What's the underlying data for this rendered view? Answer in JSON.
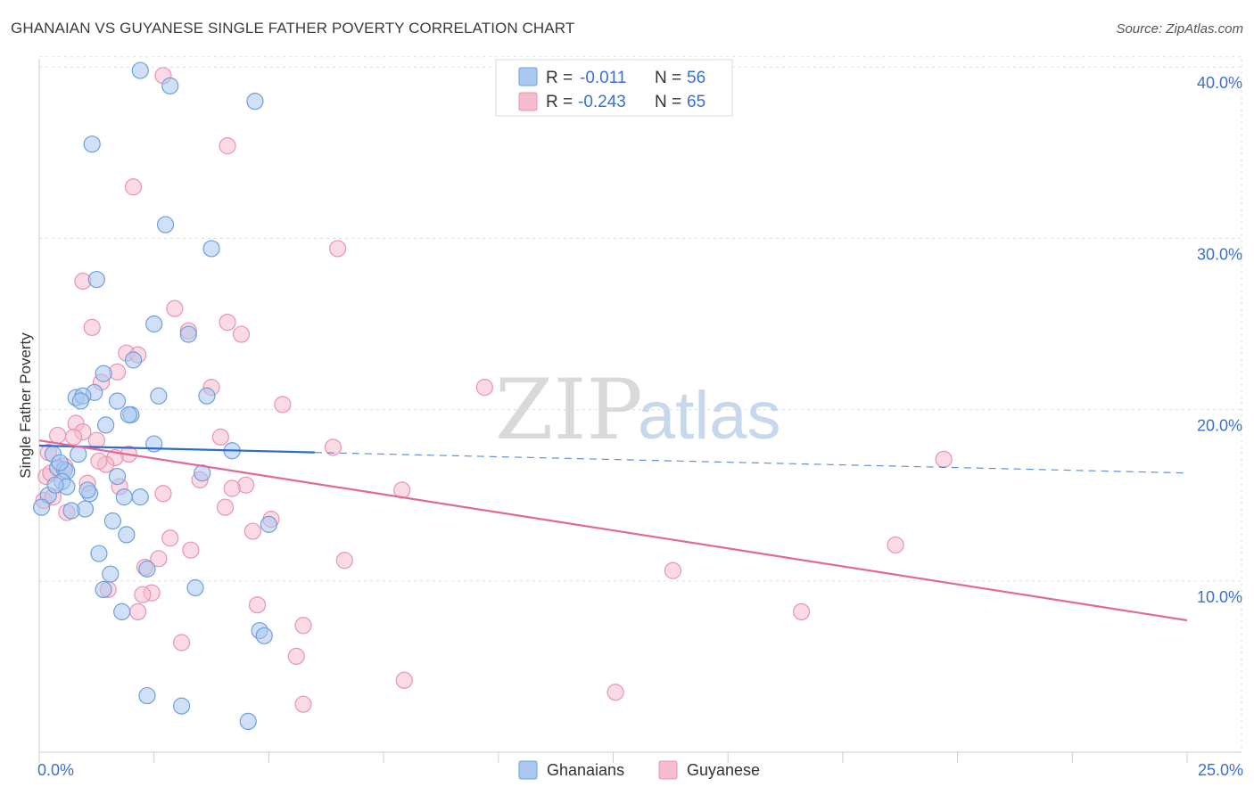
{
  "header": {
    "title": "GHANAIAN VS GUYANESE SINGLE FATHER POVERTY CORRELATION CHART",
    "source": "Source: ZipAtlas.com"
  },
  "watermark": {
    "zip": "ZIP",
    "atlas": "atlas"
  },
  "colors": {
    "blue_fill": "#aac8f0",
    "blue_stroke": "#6f9fdc",
    "blue_line": "#2a6ccc",
    "pink_fill": "#f5bccd",
    "pink_stroke": "#e994b0",
    "pink_line": "#e06a97",
    "tick_text": "#3b6fd0",
    "grid": "#dddddd"
  },
  "legend": {
    "rows": [
      {
        "r_label": "R =",
        "r_value": "-0.011",
        "n_label": "N =",
        "n_value": "56"
      },
      {
        "r_label": "R =",
        "r_value": "-0.243",
        "n_label": "N =",
        "n_value": "65"
      }
    ]
  },
  "bottom_legend": {
    "items": [
      "Ghanaians",
      "Guyanese"
    ]
  },
  "chart_data": {
    "type": "scatter",
    "title": "GHANAIAN VS GUYANESE SINGLE FATHER POVERTY CORRELATION CHART",
    "xlabel": "",
    "ylabel": "Single Father Poverty",
    "xlim": [
      0,
      25
    ],
    "ylim": [
      0,
      41
    ],
    "x_tick_labels": [
      "0.0%",
      "25.0%"
    ],
    "y_ticks": [
      10,
      20,
      30,
      40
    ],
    "y_tick_labels": [
      "10.0%",
      "20.0%",
      "30.0%",
      "40.0%"
    ],
    "grid": true,
    "series": [
      {
        "name": "Ghanaians",
        "r": -0.011,
        "n": 56,
        "trend": {
          "x": [
            0,
            6.0
          ],
          "y": [
            17.9,
            17.5
          ]
        },
        "trend_extension": {
          "x": [
            6.0,
            25
          ],
          "y": [
            17.5,
            16.3
          ]
        },
        "points": [
          {
            "x": 2.2,
            "y": 39.8
          },
          {
            "x": 2.85,
            "y": 38.9
          },
          {
            "x": 4.7,
            "y": 38.0
          },
          {
            "x": 1.15,
            "y": 35.5
          },
          {
            "x": 2.75,
            "y": 30.8
          },
          {
            "x": 3.75,
            "y": 29.4
          },
          {
            "x": 1.25,
            "y": 27.6
          },
          {
            "x": 2.5,
            "y": 25.0
          },
          {
            "x": 3.25,
            "y": 24.4
          },
          {
            "x": 2.05,
            "y": 22.9
          },
          {
            "x": 1.4,
            "y": 22.1
          },
          {
            "x": 1.2,
            "y": 21.0
          },
          {
            "x": 0.8,
            "y": 20.7
          },
          {
            "x": 0.95,
            "y": 20.8
          },
          {
            "x": 0.9,
            "y": 20.5
          },
          {
            "x": 1.7,
            "y": 20.5
          },
          {
            "x": 2.6,
            "y": 20.8
          },
          {
            "x": 3.65,
            "y": 20.8
          },
          {
            "x": 2.0,
            "y": 19.7
          },
          {
            "x": 1.95,
            "y": 19.7
          },
          {
            "x": 1.45,
            "y": 19.1
          },
          {
            "x": 2.5,
            "y": 18.0
          },
          {
            "x": 4.2,
            "y": 17.6
          },
          {
            "x": 0.3,
            "y": 17.4
          },
          {
            "x": 0.85,
            "y": 17.4
          },
          {
            "x": 0.4,
            "y": 16.6
          },
          {
            "x": 0.55,
            "y": 16.5
          },
          {
            "x": 0.6,
            "y": 16.4
          },
          {
            "x": 3.55,
            "y": 16.3
          },
          {
            "x": 1.7,
            "y": 16.1
          },
          {
            "x": 0.5,
            "y": 15.8
          },
          {
            "x": 0.6,
            "y": 15.5
          },
          {
            "x": 1.1,
            "y": 15.1
          },
          {
            "x": 0.2,
            "y": 15.0
          },
          {
            "x": 1.85,
            "y": 14.9
          },
          {
            "x": 2.2,
            "y": 14.9
          },
          {
            "x": 0.05,
            "y": 14.3
          },
          {
            "x": 1.0,
            "y": 14.2
          },
          {
            "x": 0.7,
            "y": 14.1
          },
          {
            "x": 1.6,
            "y": 13.5
          },
          {
            "x": 5.0,
            "y": 13.3
          },
          {
            "x": 1.9,
            "y": 12.7
          },
          {
            "x": 1.3,
            "y": 11.6
          },
          {
            "x": 1.55,
            "y": 10.4
          },
          {
            "x": 2.35,
            "y": 10.7
          },
          {
            "x": 3.4,
            "y": 9.6
          },
          {
            "x": 1.4,
            "y": 9.5
          },
          {
            "x": 1.8,
            "y": 8.2
          },
          {
            "x": 4.8,
            "y": 7.1
          },
          {
            "x": 4.9,
            "y": 6.8
          },
          {
            "x": 2.35,
            "y": 3.3
          },
          {
            "x": 3.1,
            "y": 2.7
          },
          {
            "x": 4.55,
            "y": 1.8
          },
          {
            "x": 0.35,
            "y": 15.6
          },
          {
            "x": 0.45,
            "y": 16.9
          },
          {
            "x": 1.05,
            "y": 15.3
          }
        ]
      },
      {
        "name": "Guyanese",
        "r": -0.243,
        "n": 65,
        "trend": {
          "x": [
            0,
            25
          ],
          "y": [
            18.2,
            7.7
          ]
        },
        "points": [
          {
            "x": 2.7,
            "y": 39.5
          },
          {
            "x": 4.1,
            "y": 35.4
          },
          {
            "x": 2.05,
            "y": 33.0
          },
          {
            "x": 6.5,
            "y": 29.4
          },
          {
            "x": 0.95,
            "y": 27.5
          },
          {
            "x": 2.95,
            "y": 25.9
          },
          {
            "x": 1.15,
            "y": 24.8
          },
          {
            "x": 4.1,
            "y": 25.1
          },
          {
            "x": 3.25,
            "y": 24.6
          },
          {
            "x": 4.4,
            "y": 24.4
          },
          {
            "x": 1.9,
            "y": 23.3
          },
          {
            "x": 2.15,
            "y": 23.2
          },
          {
            "x": 1.7,
            "y": 22.2
          },
          {
            "x": 1.35,
            "y": 21.6
          },
          {
            "x": 3.75,
            "y": 21.3
          },
          {
            "x": 9.7,
            "y": 21.3
          },
          {
            "x": 5.3,
            "y": 20.3
          },
          {
            "x": 0.8,
            "y": 19.2
          },
          {
            "x": 0.95,
            "y": 18.7
          },
          {
            "x": 0.4,
            "y": 18.5
          },
          {
            "x": 0.75,
            "y": 18.4
          },
          {
            "x": 1.25,
            "y": 18.2
          },
          {
            "x": 3.95,
            "y": 18.4
          },
          {
            "x": 6.4,
            "y": 17.8
          },
          {
            "x": 0.2,
            "y": 17.5
          },
          {
            "x": 1.95,
            "y": 17.4
          },
          {
            "x": 1.65,
            "y": 17.2
          },
          {
            "x": 19.7,
            "y": 17.1
          },
          {
            "x": 0.55,
            "y": 16.7
          },
          {
            "x": 1.45,
            "y": 16.8
          },
          {
            "x": 0.15,
            "y": 16.1
          },
          {
            "x": 3.5,
            "y": 15.9
          },
          {
            "x": 1.05,
            "y": 15.7
          },
          {
            "x": 4.5,
            "y": 15.6
          },
          {
            "x": 4.2,
            "y": 15.4
          },
          {
            "x": 7.9,
            "y": 15.3
          },
          {
            "x": 1.75,
            "y": 15.5
          },
          {
            "x": 2.7,
            "y": 15.1
          },
          {
            "x": 0.1,
            "y": 14.7
          },
          {
            "x": 0.6,
            "y": 14.0
          },
          {
            "x": 4.05,
            "y": 14.3
          },
          {
            "x": 5.05,
            "y": 13.6
          },
          {
            "x": 4.65,
            "y": 12.9
          },
          {
            "x": 2.85,
            "y": 12.5
          },
          {
            "x": 18.65,
            "y": 12.1
          },
          {
            "x": 3.3,
            "y": 11.8
          },
          {
            "x": 2.6,
            "y": 11.3
          },
          {
            "x": 6.65,
            "y": 11.2
          },
          {
            "x": 13.8,
            "y": 10.6
          },
          {
            "x": 2.3,
            "y": 10.8
          },
          {
            "x": 1.5,
            "y": 9.5
          },
          {
            "x": 2.45,
            "y": 9.3
          },
          {
            "x": 2.25,
            "y": 9.2
          },
          {
            "x": 4.75,
            "y": 8.6
          },
          {
            "x": 2.15,
            "y": 8.2
          },
          {
            "x": 16.6,
            "y": 8.2
          },
          {
            "x": 5.75,
            "y": 7.4
          },
          {
            "x": 3.1,
            "y": 6.4
          },
          {
            "x": 5.6,
            "y": 5.6
          },
          {
            "x": 7.95,
            "y": 4.2
          },
          {
            "x": 12.55,
            "y": 3.5
          },
          {
            "x": 5.75,
            "y": 2.8
          },
          {
            "x": 0.3,
            "y": 14.9
          },
          {
            "x": 0.25,
            "y": 16.3
          },
          {
            "x": 1.3,
            "y": 17.0
          }
        ]
      }
    ]
  }
}
